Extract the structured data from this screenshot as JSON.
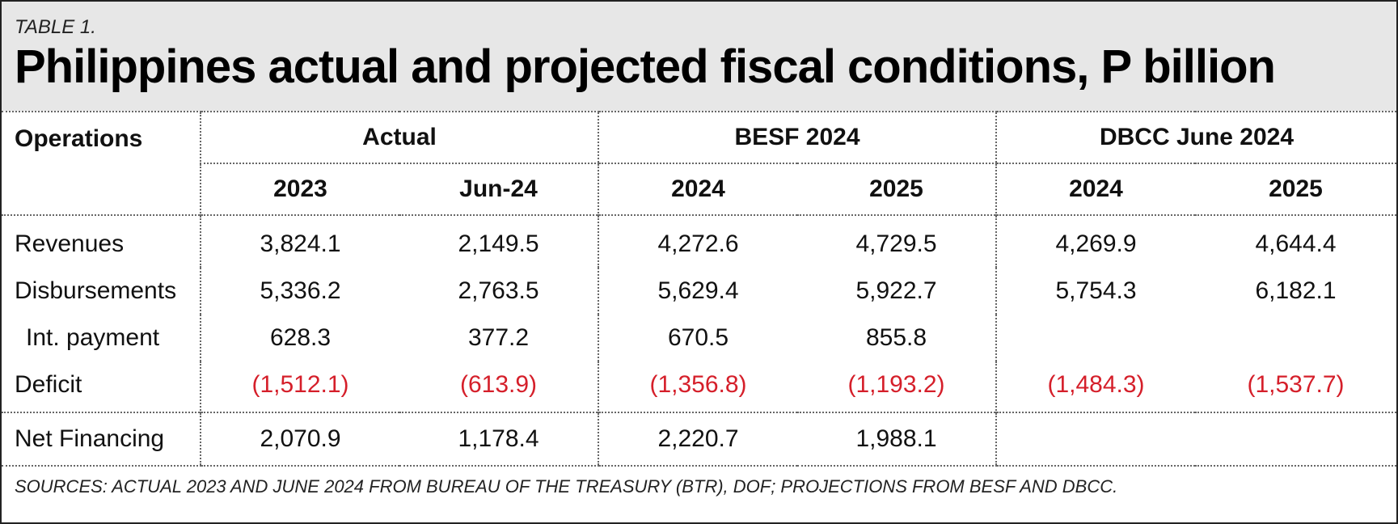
{
  "header": {
    "label": "TABLE 1.",
    "title": "Philippines actual and projected fiscal conditions, P billion"
  },
  "table": {
    "ops_header": "Operations",
    "groups": [
      {
        "name": "Actual",
        "years": [
          "2023",
          "Jun-24"
        ]
      },
      {
        "name": "BESF 2024",
        "years": [
          "2024",
          "2025"
        ]
      },
      {
        "name": "DBCC June 2024",
        "years": [
          "2024",
          "2025"
        ]
      }
    ],
    "rows": [
      {
        "label": "Revenues",
        "values": [
          "3,824.1",
          "2,149.5",
          "4,272.6",
          "4,729.5",
          "4,269.9",
          "4,644.4"
        ]
      },
      {
        "label": "Disbursements",
        "values": [
          "5,336.2",
          "2,763.5",
          "5,629.4",
          "5,922.7",
          "5,754.3",
          "6,182.1"
        ]
      },
      {
        "label": "Int. payment",
        "values": [
          "628.3",
          "377.2",
          "670.5",
          "855.8",
          "",
          ""
        ]
      },
      {
        "label": "Deficit",
        "values": [
          "(1,512.1)",
          "(613.9)",
          "(1,356.8)",
          "(1,193.2)",
          "(1,484.3)",
          "(1,537.7)"
        ]
      },
      {
        "label": "Net Financing",
        "values": [
          "2,070.9",
          "1,178.4",
          "2,220.7",
          "1,988.1",
          "",
          ""
        ]
      }
    ]
  },
  "colors": {
    "header_bg": "#e7e7e7",
    "negative": "#d51f2a",
    "text": "#111111"
  },
  "source": "SOURCES: ACTUAL 2023 AND JUNE 2024 FROM BUREAU OF THE TREASURY (BTR), DOF; PROJECTIONS FROM BESF AND DBCC."
}
